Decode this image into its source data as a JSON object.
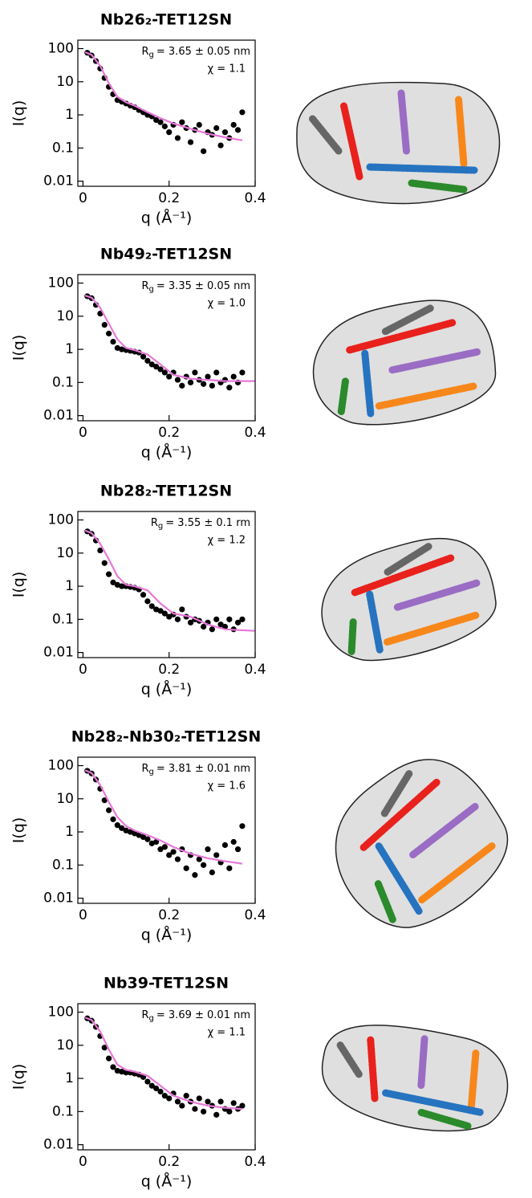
{
  "chart_data": [
    {
      "type": "scatter",
      "title": "Nb26₂-TET12SN",
      "x_label": "q (Å⁻¹)",
      "y_label": "I(q)",
      "rg": {
        "symbol": "R",
        "subscript": "g",
        "text": "= 3.65 ± 0.05 nm"
      },
      "chi": "χ = 1.1",
      "xlim": [
        -0.012,
        0.4
      ],
      "ylim": [
        0.007,
        180
      ],
      "xticks": [
        0,
        0.2,
        0.4
      ],
      "yticks": [
        0.01,
        0.1,
        1,
        10,
        100
      ],
      "log_scale_y": true,
      "series": [
        {
          "mode": "markers",
          "color": "#000000",
          "x": [
            0.01,
            0.02,
            0.03,
            0.04,
            0.05,
            0.06,
            0.07,
            0.08,
            0.09,
            0.1,
            0.11,
            0.12,
            0.13,
            0.14,
            0.15,
            0.16,
            0.17,
            0.18,
            0.19,
            0.2,
            0.21,
            0.22,
            0.23,
            0.24,
            0.25,
            0.26,
            0.27,
            0.28,
            0.29,
            0.3,
            0.31,
            0.32,
            0.33,
            0.34,
            0.35,
            0.36,
            0.37
          ],
          "values": [
            75,
            62,
            42,
            25,
            13,
            7,
            4.2,
            2.8,
            2.5,
            2.2,
            1.9,
            1.7,
            1.4,
            1.2,
            1.0,
            0.9,
            0.7,
            0.6,
            0.45,
            0.3,
            0.5,
            0.2,
            0.6,
            0.4,
            0.15,
            0.35,
            0.5,
            0.08,
            0.3,
            0.25,
            0.4,
            0.12,
            0.3,
            0.2,
            0.5,
            0.35,
            1.2
          ]
        },
        {
          "mode": "line",
          "color": "#e678d8",
          "x": [
            0.005,
            0.02,
            0.04,
            0.06,
            0.08,
            0.1,
            0.12,
            0.15,
            0.18,
            0.21,
            0.25,
            0.29,
            0.33,
            0.37
          ],
          "values": [
            78,
            65,
            30,
            9,
            3.5,
            2.4,
            1.9,
            1.2,
            0.8,
            0.55,
            0.38,
            0.27,
            0.21,
            0.17
          ]
        }
      ]
    },
    {
      "type": "scatter",
      "title": "Nb49₂-TET12SN",
      "x_label": "q (Å⁻¹)",
      "y_label": "I(q)",
      "rg": {
        "symbol": "R",
        "subscript": "g",
        "text": "= 3.35 ± 0.05 nm"
      },
      "chi": "χ = 1.0",
      "xlim": [
        -0.012,
        0.4
      ],
      "ylim": [
        0.007,
        180
      ],
      "xticks": [
        0,
        0.2,
        0.4
      ],
      "yticks": [
        0.01,
        0.1,
        1,
        10,
        100
      ],
      "log_scale_y": true,
      "series": [
        {
          "mode": "markers",
          "color": "#000000",
          "x": [
            0.01,
            0.02,
            0.03,
            0.04,
            0.05,
            0.06,
            0.07,
            0.08,
            0.09,
            0.1,
            0.11,
            0.12,
            0.13,
            0.14,
            0.15,
            0.16,
            0.17,
            0.18,
            0.19,
            0.2,
            0.21,
            0.22,
            0.23,
            0.24,
            0.25,
            0.26,
            0.27,
            0.28,
            0.29,
            0.3,
            0.31,
            0.32,
            0.33,
            0.34,
            0.35,
            0.36,
            0.37
          ],
          "values": [
            40,
            35,
            22,
            12,
            5.5,
            3,
            1.7,
            1.1,
            1.0,
            0.95,
            0.9,
            0.85,
            0.8,
            0.6,
            0.45,
            0.35,
            0.3,
            0.25,
            0.2,
            0.15,
            0.2,
            0.12,
            0.08,
            0.15,
            0.1,
            0.2,
            0.12,
            0.09,
            0.15,
            0.08,
            0.2,
            0.1,
            0.12,
            0.07,
            0.15,
            0.1,
            0.2
          ]
        },
        {
          "mode": "line",
          "color": "#e678d8",
          "x": [
            0.005,
            0.02,
            0.04,
            0.06,
            0.08,
            0.1,
            0.12,
            0.15,
            0.18,
            0.21,
            0.25,
            0.29,
            0.33,
            0.4
          ],
          "values": [
            42,
            36,
            18,
            6,
            2,
            1.1,
            0.95,
            0.7,
            0.35,
            0.17,
            0.13,
            0.12,
            0.11,
            0.11
          ]
        }
      ]
    },
    {
      "type": "scatter",
      "title": "Nb28₂-TET12SN",
      "x_label": "q (Å⁻¹)",
      "y_label": "I(q)",
      "rg": {
        "symbol": "R",
        "subscript": "g",
        "text": "= 3.55 ± 0.1 rm"
      },
      "chi": "χ = 1.2",
      "xlim": [
        -0.012,
        0.4
      ],
      "ylim": [
        0.007,
        180
      ],
      "xticks": [
        0,
        0.2,
        0.4
      ],
      "yticks": [
        0.01,
        0.1,
        1,
        10,
        100
      ],
      "log_scale_y": true,
      "series": [
        {
          "mode": "markers",
          "color": "#000000",
          "x": [
            0.01,
            0.02,
            0.03,
            0.04,
            0.05,
            0.06,
            0.07,
            0.08,
            0.09,
            0.1,
            0.11,
            0.12,
            0.13,
            0.14,
            0.15,
            0.16,
            0.17,
            0.18,
            0.19,
            0.2,
            0.21,
            0.22,
            0.23,
            0.24,
            0.25,
            0.26,
            0.27,
            0.28,
            0.29,
            0.3,
            0.31,
            0.32,
            0.33,
            0.34,
            0.35,
            0.36,
            0.37
          ],
          "values": [
            45,
            38,
            24,
            12,
            5,
            2.3,
            1.3,
            1.1,
            1.0,
            1.0,
            0.95,
            0.9,
            0.8,
            0.55,
            0.35,
            0.25,
            0.2,
            0.18,
            0.15,
            0.12,
            0.14,
            0.1,
            0.2,
            0.12,
            0.08,
            0.1,
            0.09,
            0.06,
            0.08,
            0.05,
            0.1,
            0.07,
            0.06,
            0.1,
            0.05,
            0.08,
            0.1
          ]
        },
        {
          "mode": "line",
          "color": "#e678d8",
          "x": [
            0.005,
            0.02,
            0.04,
            0.06,
            0.08,
            0.1,
            0.12,
            0.15,
            0.18,
            0.21,
            0.25,
            0.29,
            0.33,
            0.4
          ],
          "values": [
            48,
            40,
            19,
            6.5,
            2,
            1.1,
            1.0,
            0.75,
            0.3,
            0.15,
            0.12,
            0.07,
            0.05,
            0.045
          ]
        }
      ]
    },
    {
      "type": "scatter",
      "title": "Nb28₂-Nb30₂-TET12SN",
      "x_label": "q (Å⁻¹)",
      "y_label": "I(q)",
      "rg": {
        "symbol": "R",
        "subscript": "g",
        "text": "= 3.81 ± 0.01 nm"
      },
      "chi": "χ = 1.6",
      "xlim": [
        -0.012,
        0.4
      ],
      "ylim": [
        0.007,
        180
      ],
      "xticks": [
        0,
        0.2,
        0.4
      ],
      "yticks": [
        0.01,
        0.1,
        1,
        10,
        100
      ],
      "log_scale_y": true,
      "series": [
        {
          "mode": "markers",
          "color": "#000000",
          "x": [
            0.01,
            0.02,
            0.03,
            0.04,
            0.05,
            0.06,
            0.07,
            0.08,
            0.09,
            0.1,
            0.11,
            0.12,
            0.13,
            0.14,
            0.15,
            0.16,
            0.17,
            0.18,
            0.19,
            0.2,
            0.21,
            0.22,
            0.23,
            0.24,
            0.25,
            0.26,
            0.27,
            0.28,
            0.29,
            0.3,
            0.31,
            0.32,
            0.33,
            0.34,
            0.35,
            0.36,
            0.37
          ],
          "values": [
            70,
            58,
            38,
            20,
            9,
            4.5,
            2.4,
            1.6,
            1.3,
            1.1,
            1.0,
            0.9,
            0.8,
            0.7,
            0.6,
            0.45,
            0.5,
            0.3,
            0.35,
            0.2,
            0.25,
            0.15,
            0.3,
            0.08,
            0.2,
            0.05,
            0.15,
            0.1,
            0.3,
            0.06,
            0.2,
            0.12,
            0.4,
            0.08,
            0.5,
            0.3,
            1.5
          ]
        },
        {
          "mode": "line",
          "color": "#e678d8",
          "x": [
            0.005,
            0.02,
            0.04,
            0.06,
            0.08,
            0.1,
            0.12,
            0.15,
            0.18,
            0.21,
            0.25,
            0.29,
            0.33,
            0.37
          ],
          "values": [
            72,
            60,
            26,
            8,
            2.8,
            1.5,
            1.1,
            0.8,
            0.55,
            0.35,
            0.22,
            0.16,
            0.13,
            0.11
          ]
        }
      ]
    },
    {
      "type": "scatter",
      "title": "Nb39-TET12SN",
      "x_label": "q (Å⁻¹)",
      "y_label": "I(q)",
      "rg": {
        "symbol": "R",
        "subscript": "g",
        "text": "= 3.69 ± 0.01 nm"
      },
      "chi": "χ = 1.1",
      "xlim": [
        -0.012,
        0.4
      ],
      "ylim": [
        0.007,
        180
      ],
      "xticks": [
        0,
        0.2,
        0.4
      ],
      "yticks": [
        0.01,
        0.1,
        1,
        10,
        100
      ],
      "log_scale_y": true,
      "series": [
        {
          "mode": "markers",
          "color": "#000000",
          "x": [
            0.01,
            0.02,
            0.03,
            0.04,
            0.05,
            0.06,
            0.07,
            0.08,
            0.09,
            0.1,
            0.11,
            0.12,
            0.13,
            0.14,
            0.15,
            0.16,
            0.17,
            0.18,
            0.19,
            0.2,
            0.21,
            0.22,
            0.23,
            0.24,
            0.25,
            0.26,
            0.27,
            0.28,
            0.29,
            0.3,
            0.31,
            0.32,
            0.33,
            0.34,
            0.35,
            0.36,
            0.37
          ],
          "values": [
            65,
            55,
            36,
            19,
            8.5,
            4,
            2.2,
            1.7,
            1.6,
            1.5,
            1.5,
            1.4,
            1.3,
            1.1,
            0.8,
            0.6,
            0.5,
            0.4,
            0.3,
            0.25,
            0.35,
            0.2,
            0.15,
            0.3,
            0.2,
            0.12,
            0.25,
            0.1,
            0.2,
            0.15,
            0.08,
            0.2,
            0.12,
            0.1,
            0.18,
            0.12,
            0.15
          ]
        },
        {
          "mode": "line",
          "color": "#e678d8",
          "x": [
            0.005,
            0.02,
            0.04,
            0.06,
            0.08,
            0.1,
            0.12,
            0.15,
            0.18,
            0.21,
            0.25,
            0.29,
            0.33,
            0.37
          ],
          "values": [
            68,
            58,
            26,
            7.5,
            2.6,
            1.8,
            1.6,
            1.2,
            0.6,
            0.3,
            0.2,
            0.15,
            0.13,
            0.12
          ]
        }
      ]
    }
  ]
}
